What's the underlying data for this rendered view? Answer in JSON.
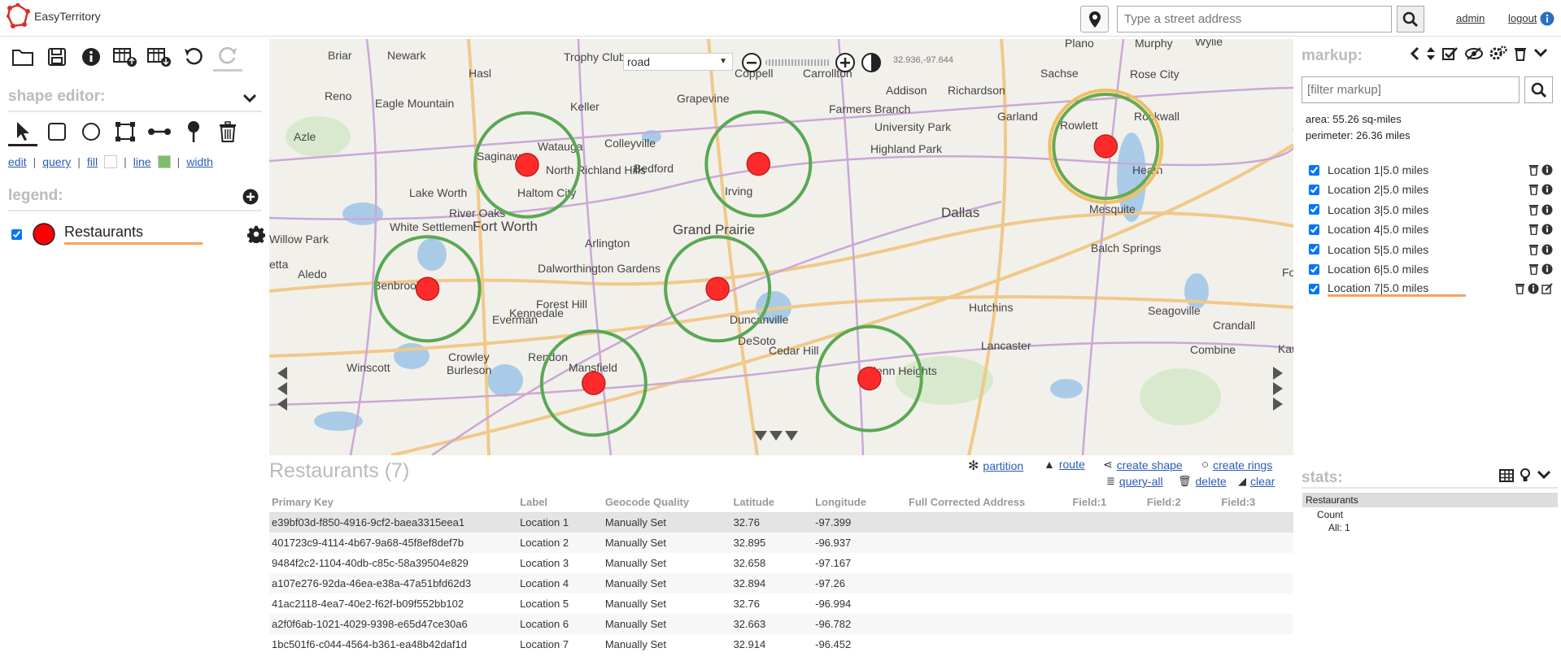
{
  "app": {
    "name": "EasyTerritory"
  },
  "header": {
    "address_placeholder": "Type a street address",
    "admin": "admin",
    "logout": "logout"
  },
  "shape_editor": {
    "title": "shape editor:",
    "links": {
      "edit": "edit",
      "query": "query",
      "fill": "fill",
      "line": "line",
      "width": "width"
    },
    "line_color": "#7bbf6a"
  },
  "legend": {
    "title": "legend:",
    "items": [
      {
        "label": "Restaurants",
        "color": "#ff0000",
        "checked": true
      }
    ]
  },
  "map": {
    "type_select": "road",
    "coords": "32.936,-97.644",
    "places": [
      "Plano",
      "Murphy",
      "Wylie",
      "Briar",
      "Newark",
      "Trophy Club",
      "Coppell",
      "Carrollton",
      "Addison",
      "Richardson",
      "Sachse",
      "Rose City",
      "Hasl",
      "Keller",
      "Grapevine",
      "Farmers Branch",
      "Garland",
      "Rowlett",
      "Rockwall",
      "Reno",
      "Eagle Mountain",
      "Azle",
      "Watauga",
      "Colleyville",
      "University Park",
      "Heath",
      "Saginaw",
      "North Richland Hills",
      "Bedford",
      "Highland Park",
      "Lake Worth",
      "Haltom City",
      "Irving",
      "Dallas",
      "Mesquite",
      "River Oaks",
      "White Settlement",
      "Fort Worth",
      "Grand Prairie",
      "Willow Park",
      "Arlington",
      "Balch Springs",
      "Forney",
      "etta",
      "Aledo",
      "Dalworthington Gardens",
      "Benbrook",
      "Forest Hill",
      "Kennedale",
      "Everman",
      "Duncanville",
      "Hutchins",
      "Seagoville",
      "Crandall",
      "DeSoto",
      "Lancaster",
      "Winscott",
      "Crowley",
      "Rendon",
      "Cedar Hill",
      "Burleson",
      "Mansfield",
      "Glenn Heights",
      "Combine",
      "Kau"
    ]
  },
  "results": {
    "title": "Restaurants (7)",
    "actions": {
      "partition": "partition",
      "route": "route",
      "create_shape": "create shape",
      "create_rings": "create rings",
      "query_all": "query-all",
      "delete": "delete",
      "clear": "clear"
    },
    "columns": [
      "Primary Key",
      "Label",
      "Geocode Quality",
      "Latitude",
      "Longitude",
      "Full Corrected Address",
      "Field:1",
      "Field:2",
      "Field:3"
    ],
    "rows": [
      [
        "e39bf03d-f850-4916-9cf2-baea3315eea1",
        "Location 1",
        "Manually Set",
        "32.76",
        "-97.399"
      ],
      [
        "401723c9-4114-4b67-9a68-45f8ef8def7b",
        "Location 2",
        "Manually Set",
        "32.895",
        "-96.937"
      ],
      [
        "9484f2c2-1104-40db-c85c-58a39504e829",
        "Location 3",
        "Manually Set",
        "32.658",
        "-97.167"
      ],
      [
        "a107e276-92da-46ea-e38a-47a51bfd62d3",
        "Location 4",
        "Manually Set",
        "32.894",
        "-97.26"
      ],
      [
        "41ac2118-4ea7-40e2-f62f-b09f552bb102",
        "Location 5",
        "Manually Set",
        "32.76",
        "-96.994"
      ],
      [
        "a2f0f6ab-1021-4029-9398-e65d47ce30a6",
        "Location 6",
        "Manually Set",
        "32.663",
        "-96.782"
      ],
      [
        "1bc501f6-c044-4564-b361-ea48b42daf1d",
        "Location 7",
        "Manually Set",
        "32.914",
        "-96.452"
      ]
    ]
  },
  "markup": {
    "title": "markup:",
    "filter_placeholder": "[filter markup]",
    "area": "area: 55.26 sq-miles",
    "perimeter": "perimeter: 26.36 miles",
    "items": [
      "Location 1|5.0 miles",
      "Location 2|5.0 miles",
      "Location 3|5.0 miles",
      "Location 4|5.0 miles",
      "Location 5|5.0 miles",
      "Location 6|5.0 miles",
      "Location 7|5.0 miles"
    ]
  },
  "stats": {
    "title": "stats:",
    "group": "Restaurants",
    "count": "Count",
    "all": "All: 1"
  }
}
